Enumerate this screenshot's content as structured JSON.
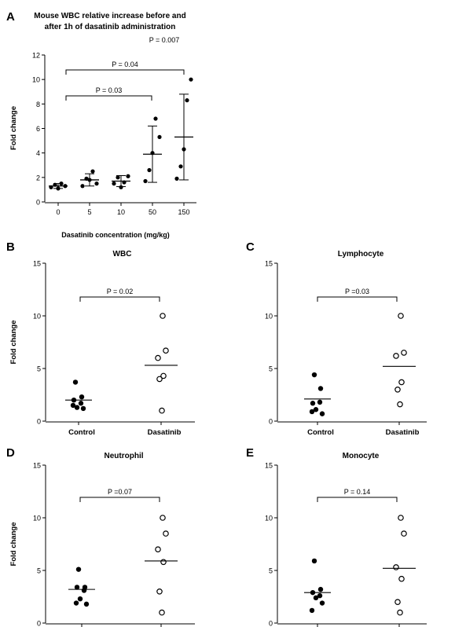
{
  "chart_data": [
    {
      "panel": "A",
      "type": "scatter",
      "title": "Mouse WBC relative increase before and after 1h of dasatinib administration",
      "title_lines": [
        "Mouse WBC relative increase before and",
        "after 1h of dasatinib administration"
      ],
      "ylabel": "Fold change",
      "xlabel": "Dasatinib concentration (mg/kg)",
      "categories": [
        "0",
        "5",
        "10",
        "50",
        "150"
      ],
      "ylim": [
        0,
        12
      ],
      "yticks": [
        0,
        2,
        4,
        6,
        8,
        10,
        12
      ],
      "points": [
        [
          1.2,
          1.4,
          1.1,
          1.5,
          1.3
        ],
        [
          1.3,
          1.9,
          1.8,
          2.5,
          1.5
        ],
        [
          1.5,
          2.0,
          1.2,
          1.6,
          2.1
        ],
        [
          1.7,
          2.6,
          4.0,
          6.8,
          5.3
        ],
        [
          1.9,
          2.9,
          4.3,
          8.3,
          10.0
        ]
      ],
      "means": [
        1.3,
        1.8,
        1.7,
        3.9,
        5.3
      ],
      "sd": [
        0.2,
        0.5,
        0.45,
        2.3,
        3.5
      ],
      "annotations": [
        {
          "label": "P = 0.04",
          "from": "0",
          "to": "150"
        },
        {
          "label": "P = 0.03",
          "from": "0",
          "to": "50"
        },
        {
          "label": "P = 0.007",
          "from": "150",
          "to": "150"
        }
      ]
    },
    {
      "panel": "B",
      "type": "scatter",
      "title": "WBC",
      "ylabel": "Fold change",
      "categories": [
        "Control",
        "Dasatinib"
      ],
      "ylim": [
        0,
        15
      ],
      "yticks": [
        0,
        5,
        10,
        15
      ],
      "control": [
        3.7,
        2.3,
        2.0,
        1.7,
        1.3,
        1.2,
        1.5
      ],
      "dasatinib": [
        10.0,
        6.7,
        6.0,
        4.3,
        4.0,
        1.0
      ],
      "means": [
        2.0,
        5.3
      ],
      "annotation": "P = 0.02"
    },
    {
      "panel": "C",
      "type": "scatter",
      "title": "Lymphocyte",
      "categories": [
        "Control",
        "Dasatinib"
      ],
      "ylim": [
        0,
        15
      ],
      "yticks": [
        0,
        5,
        10,
        15
      ],
      "control": [
        4.4,
        3.1,
        1.7,
        1.8,
        1.1,
        0.7,
        0.9
      ],
      "dasatinib": [
        10.0,
        6.5,
        6.2,
        3.7,
        3.0,
        1.6
      ],
      "means": [
        2.1,
        5.2
      ],
      "annotation": "P =0.03"
    },
    {
      "panel": "D",
      "type": "scatter",
      "title": "Neutrophil",
      "ylabel": "Fold change",
      "categories": [],
      "ylim": [
        0,
        15
      ],
      "yticks": [
        0,
        5,
        10,
        15
      ],
      "control": [
        5.1,
        3.4,
        3.4,
        3.1,
        2.3,
        1.8,
        1.9
      ],
      "dasatinib": [
        10.0,
        8.5,
        7.0,
        5.8,
        3.0,
        1.0
      ],
      "means": [
        3.2,
        5.9
      ],
      "annotation": "P =0.07"
    },
    {
      "panel": "E",
      "type": "scatter",
      "title": "Monocyte",
      "categories": [],
      "ylim": [
        0,
        15
      ],
      "yticks": [
        0,
        5,
        10,
        15
      ],
      "control": [
        5.9,
        3.2,
        2.9,
        2.6,
        2.4,
        1.9,
        1.2
      ],
      "dasatinib": [
        10.0,
        8.5,
        5.3,
        4.2,
        2.0,
        1.0
      ],
      "means": [
        2.9,
        5.2
      ],
      "annotation": "P = 0.14"
    }
  ]
}
